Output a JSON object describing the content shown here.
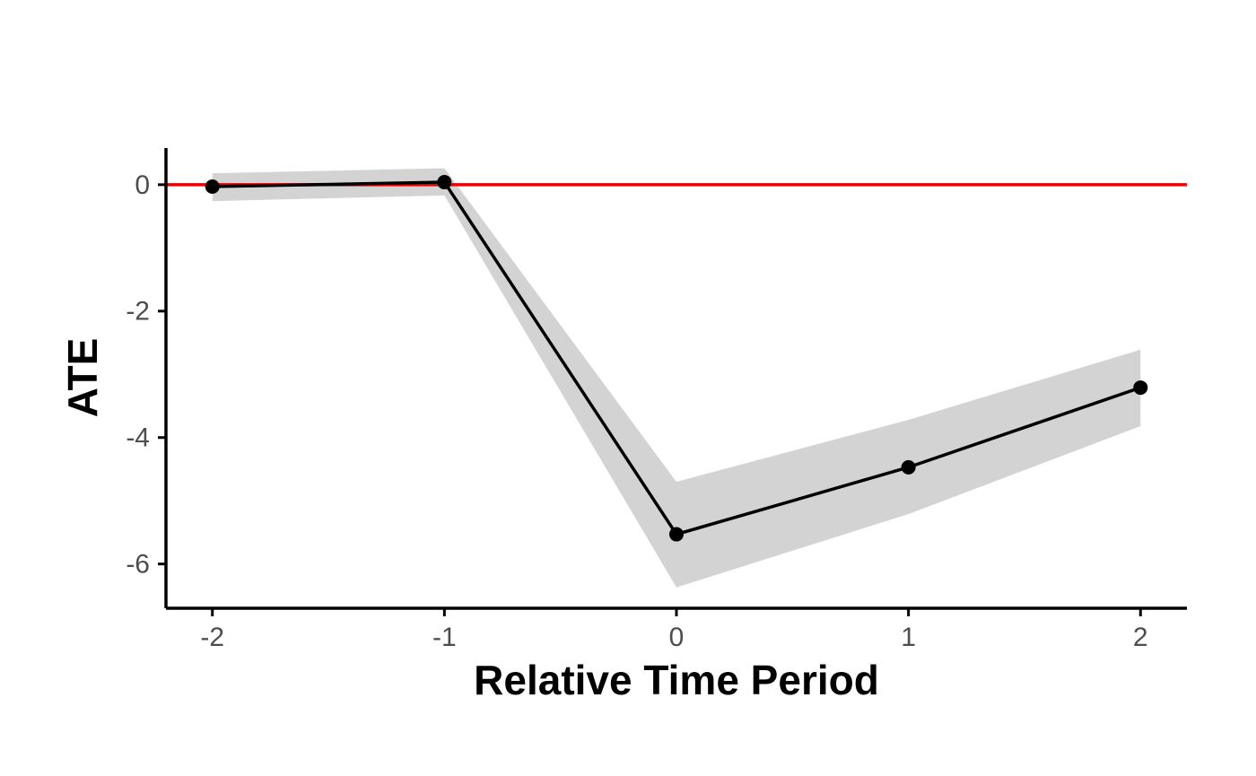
{
  "chart_data": {
    "type": "line",
    "xlabel": "Relative Time Period",
    "ylabel": "ATE",
    "x": [
      -2,
      -1,
      0,
      1,
      2
    ],
    "values": [
      -0.03,
      0.04,
      -5.53,
      -4.47,
      -3.21
    ],
    "lower": [
      -0.26,
      -0.17,
      -6.37,
      -5.21,
      -3.82
    ],
    "upper": [
      0.18,
      0.26,
      -4.7,
      -3.72,
      -2.61
    ],
    "color": "#000000",
    "band_color": "#d3d3d3",
    "reference_line": {
      "value": 0,
      "color": "#ee0000"
    },
    "xlim": [
      -2.2,
      2.2
    ],
    "xticks": [
      -2,
      -1,
      0,
      1,
      2
    ],
    "ylim": [
      -6.7,
      0.58
    ],
    "yticks": [
      0,
      -2,
      -4,
      -6
    ]
  }
}
